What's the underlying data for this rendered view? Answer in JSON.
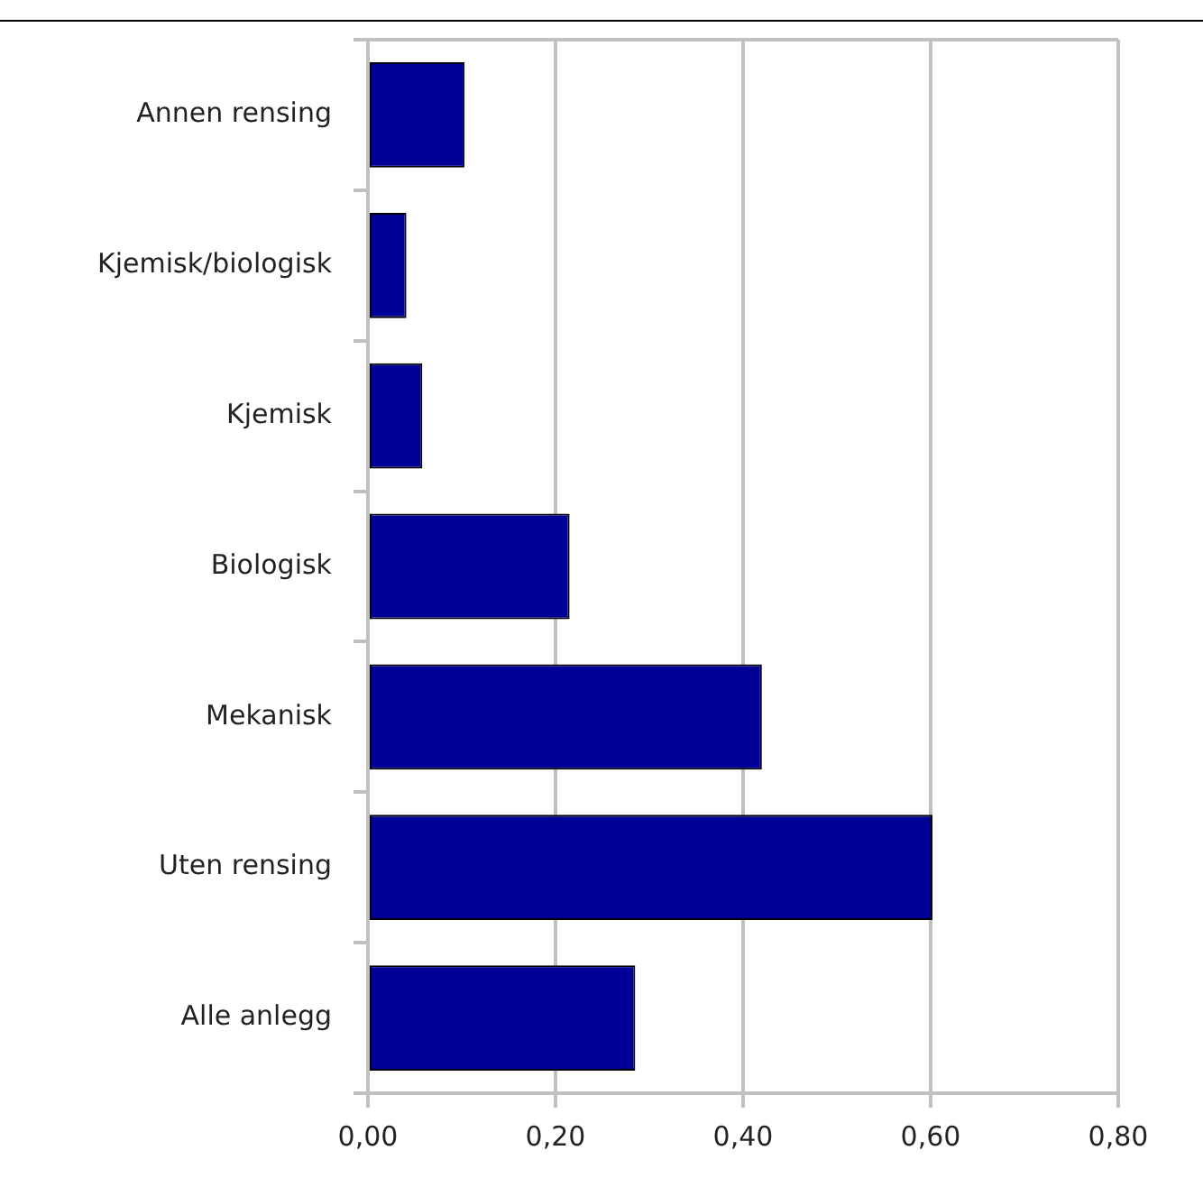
{
  "chart_data": {
    "type": "bar",
    "orientation": "horizontal",
    "categories": [
      "Annen rensing",
      "Kjemisk/biologisk",
      "Kjemisk",
      "Biologisk",
      "Mekanisk",
      "Uten rensing",
      "Alle anlegg"
    ],
    "values": [
      0.103,
      0.041,
      0.058,
      0.215,
      0.42,
      0.602,
      0.285
    ],
    "color": "#000099",
    "xlim": [
      0,
      0.8
    ],
    "xticks": [
      {
        "value": 0,
        "label": "0,00"
      },
      {
        "value": 0.2,
        "label": "0,20"
      },
      {
        "value": 0.4,
        "label": "0,40"
      },
      {
        "value": 0.6,
        "label": "0,60"
      },
      {
        "value": 0.8,
        "label": "0,80"
      }
    ],
    "grid": "x",
    "legend": false
  }
}
